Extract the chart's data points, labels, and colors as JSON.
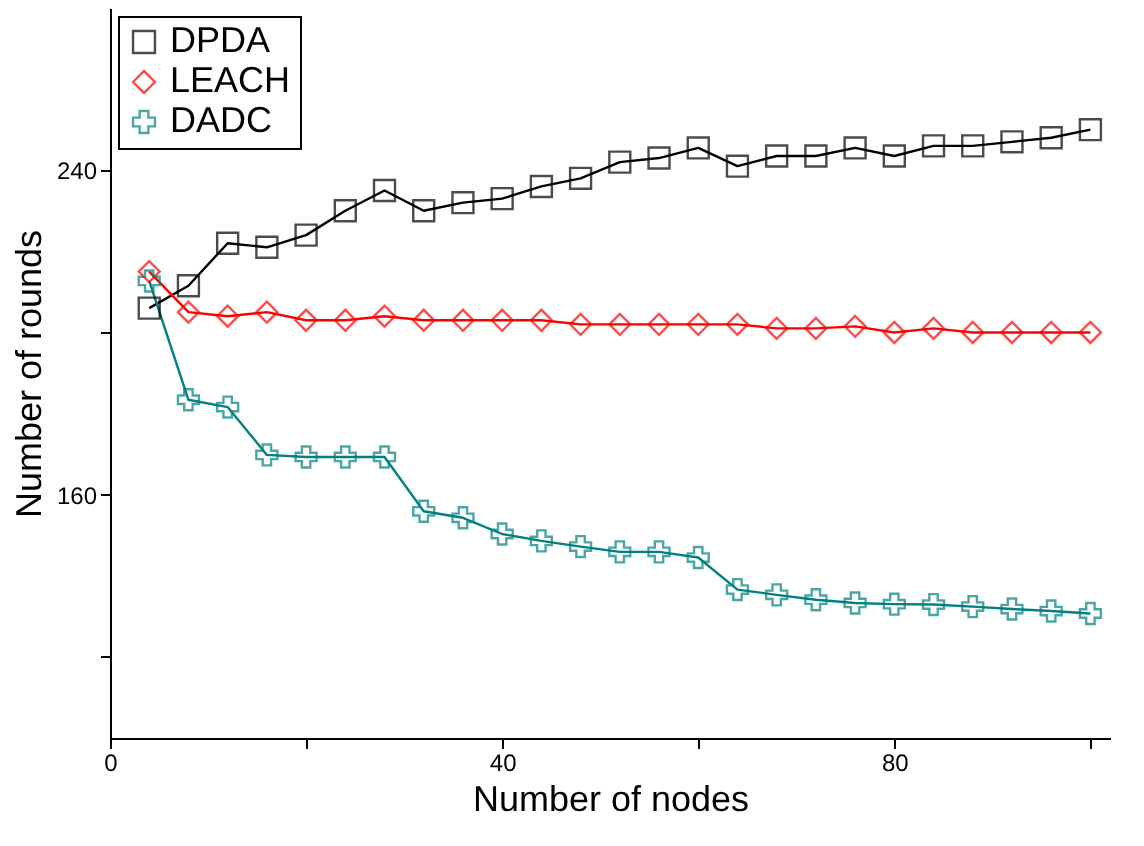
{
  "chart_data": {
    "type": "line",
    "xlabel": "Number of nodes",
    "ylabel": "Number of rounds",
    "x": [
      4,
      8,
      12,
      16,
      20,
      24,
      28,
      32,
      36,
      40,
      44,
      48,
      52,
      56,
      60,
      64,
      68,
      72,
      76,
      80,
      84,
      88,
      92,
      96,
      100
    ],
    "series": [
      {
        "name": "DPDA",
        "color": "#000000",
        "marker": "square",
        "values": [
          206,
          211.5,
          222,
          221,
          224,
          230,
          235,
          230,
          232,
          233,
          236,
          238,
          242,
          243,
          245.5,
          241,
          243.5,
          243.5,
          245.5,
          243.5,
          246,
          246,
          247,
          248,
          250
        ]
      },
      {
        "name": "LEACH",
        "color": "#ff0000",
        "marker": "diamond",
        "values": [
          215,
          205,
          204,
          205,
          203,
          203,
          204,
          203,
          203,
          203,
          203,
          202,
          202,
          202,
          202,
          202,
          201,
          201,
          201.5,
          200,
          201,
          200,
          200,
          200,
          200
        ]
      },
      {
        "name": "DADC",
        "color": "#008080",
        "marker": "cross",
        "values": [
          212.7,
          183.4,
          181.6,
          169.8,
          169.3,
          169.3,
          169.3,
          155.9,
          154.3,
          150.3,
          148.6,
          147.2,
          145.9,
          145.9,
          144.5,
          136.6,
          135.3,
          134.1,
          133.3,
          133,
          132.9,
          132.4,
          131.8,
          131.3,
          130.7
        ]
      }
    ],
    "xlim": [
      0,
      102
    ],
    "ylim": [
      100,
      280
    ],
    "xticks": [
      0,
      {
        "value": 20,
        "label": null
      },
      40,
      {
        "value": 60,
        "label": null
      },
      80,
      {
        "value": 100,
        "label": null
      }
    ],
    "yticks": [
      {
        "value": 120,
        "label": null
      },
      160,
      {
        "value": 200,
        "label": null
      },
      240
    ],
    "grid": false,
    "legend": "top left",
    "line_style": "solid"
  }
}
